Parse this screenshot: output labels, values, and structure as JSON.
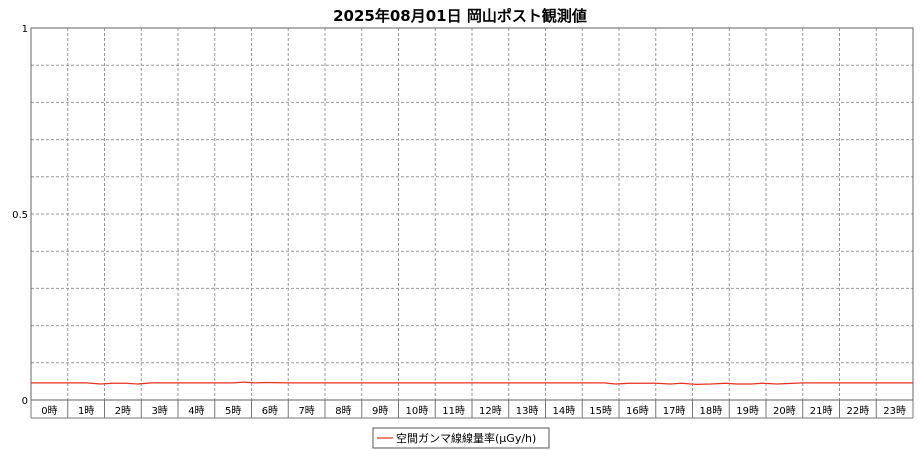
{
  "chart_data": {
    "type": "line",
    "title": "2025年08月01日 岡山ポスト観測値",
    "xlabel": "",
    "ylabel": "",
    "ylim": [
      0,
      1
    ],
    "yticks": [
      {
        "value": 0,
        "label": "0"
      },
      {
        "value": 0.5,
        "label": "0.5"
      },
      {
        "value": 1,
        "label": "1"
      }
    ],
    "categories": [
      "0時",
      "1時",
      "2時",
      "3時",
      "4時",
      "5時",
      "6時",
      "7時",
      "8時",
      "9時",
      "10時",
      "11時",
      "12時",
      "13時",
      "14時",
      "15時",
      "16時",
      "17時",
      "18時",
      "19時",
      "20時",
      "21時",
      "22時",
      "23時"
    ],
    "grid": true,
    "legend_position": "bottom",
    "series": [
      {
        "name": "空間ガンマ線線量率(μGy/h)",
        "color": "#e8321e",
        "x": [
          0,
          0.5,
          1,
          1.5,
          1.9,
          2.2,
          2.6,
          2.9,
          3.3,
          4,
          5,
          5.5,
          5.8,
          6.1,
          6.4,
          7,
          8,
          9,
          10,
          11,
          12,
          13,
          14,
          15,
          15.6,
          15.9,
          16.3,
          17,
          17.4,
          17.7,
          18.1,
          18.5,
          18.9,
          19.2,
          19.6,
          19.9,
          20.3,
          21,
          22,
          23,
          24
        ],
        "values": [
          0.046,
          0.046,
          0.046,
          0.046,
          0.043,
          0.045,
          0.045,
          0.043,
          0.046,
          0.046,
          0.046,
          0.046,
          0.048,
          0.046,
          0.047,
          0.046,
          0.046,
          0.046,
          0.046,
          0.046,
          0.046,
          0.046,
          0.046,
          0.046,
          0.046,
          0.043,
          0.045,
          0.045,
          0.043,
          0.045,
          0.042,
          0.043,
          0.045,
          0.043,
          0.043,
          0.045,
          0.043,
          0.046,
          0.046,
          0.046,
          0.046
        ]
      }
    ]
  }
}
